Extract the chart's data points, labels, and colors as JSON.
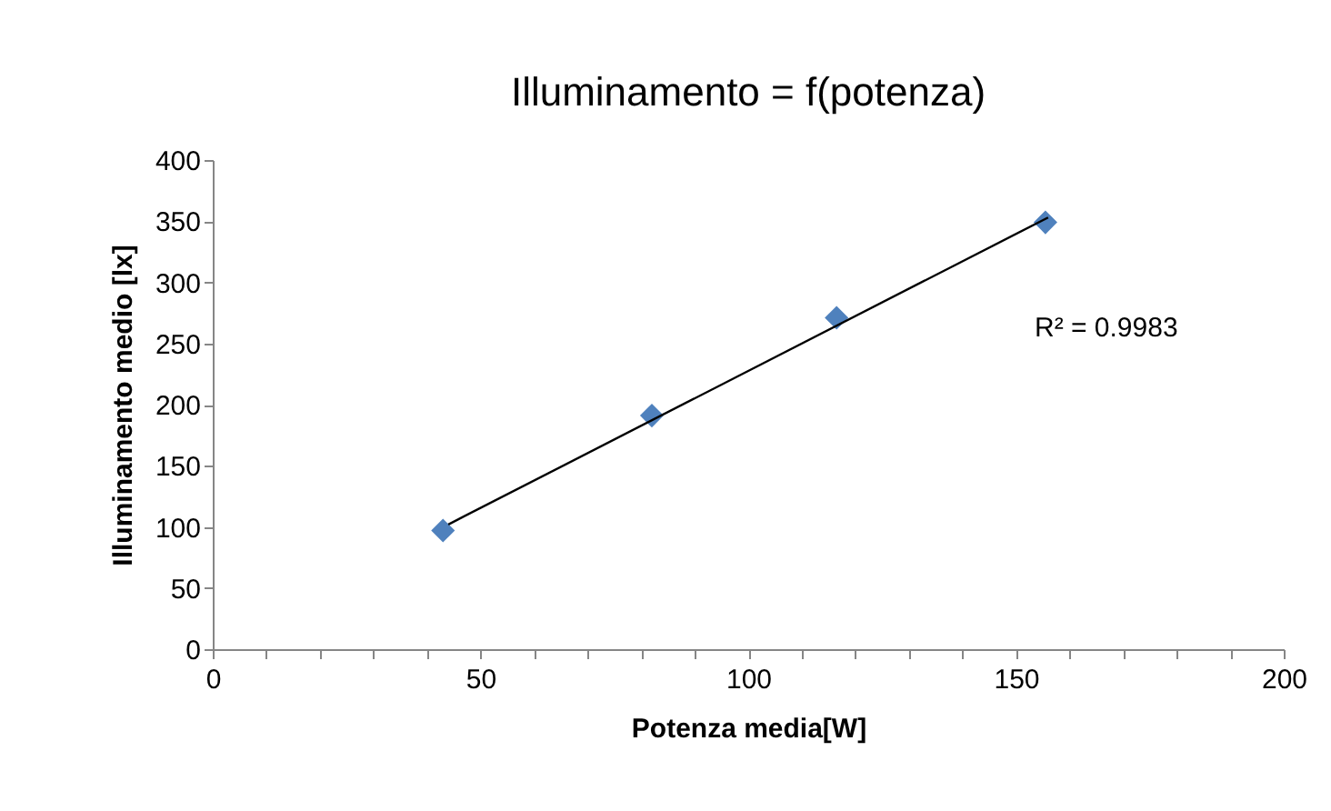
{
  "chart_data": {
    "type": "scatter",
    "title": "Illuminamento = f(potenza)",
    "xlabel": "Potenza media[W]",
    "ylabel": "Illuminamento medio [lx]",
    "series": [
      {
        "type": "scatter",
        "color": "#4f81bd",
        "x": [
          43,
          82,
          116.5,
          155.5
        ],
        "values": [
          97,
          191,
          271,
          349
        ]
      },
      {
        "type": "line",
        "marker": "none",
        "color": "#000000",
        "x": [
          44,
          156
        ],
        "values": [
          102,
          353
        ]
      }
    ],
    "marker": "diamond",
    "grid": false,
    "xlim": [
      0,
      200
    ],
    "xticks": [
      0,
      {
        "value": 10,
        "label": null
      },
      {
        "value": 20,
        "label": null
      },
      {
        "value": 30,
        "label": null
      },
      {
        "value": 40,
        "label": null
      },
      50,
      {
        "value": 60,
        "label": null
      },
      {
        "value": 70,
        "label": null
      },
      {
        "value": 80,
        "label": null
      },
      {
        "value": 90,
        "label": null
      },
      100,
      {
        "value": 110,
        "label": null
      },
      {
        "value": 120,
        "label": null
      },
      {
        "value": 130,
        "label": null
      },
      {
        "value": 140,
        "label": null
      },
      150,
      {
        "value": 160,
        "label": null
      },
      {
        "value": 170,
        "label": null
      },
      {
        "value": 180,
        "label": null
      },
      {
        "value": 190,
        "label": null
      },
      200
    ],
    "ylim": [
      0,
      400
    ],
    "yticks": [
      0,
      50,
      100,
      150,
      200,
      250,
      300,
      350,
      400
    ],
    "annotations": [
      "R² = 0.9983"
    ]
  }
}
